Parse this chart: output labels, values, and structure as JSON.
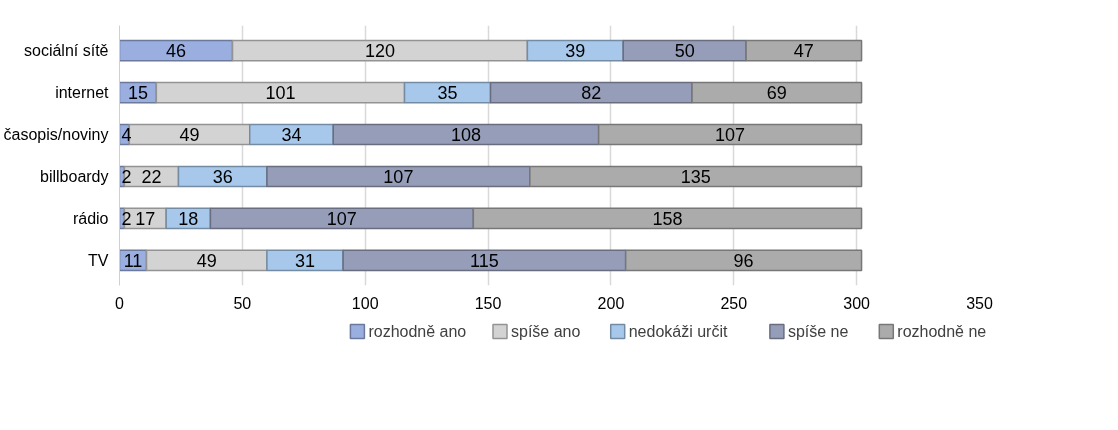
{
  "chart_data": {
    "type": "bar",
    "orientation": "horizontal",
    "stacked": true,
    "data_labels": true,
    "categories": [
      "sociální sítě",
      "internet",
      "časopis/noviny",
      "billboardy",
      "rádio",
      "TV"
    ],
    "series": [
      {
        "name": "rozhodně ano",
        "color": "#9aaee0",
        "values": [
          46,
          15,
          4,
          2,
          2,
          11
        ]
      },
      {
        "name": "spíše ano",
        "color": "#d3d3d3",
        "values": [
          120,
          101,
          49,
          22,
          17,
          49
        ]
      },
      {
        "name": "nedokáži určit",
        "color": "#a7c8ea",
        "values": [
          39,
          35,
          34,
          36,
          18,
          31
        ]
      },
      {
        "name": "spíše ne",
        "color": "#959db8",
        "values": [
          50,
          82,
          108,
          107,
          107,
          115
        ]
      },
      {
        "name": "rozhodně ne",
        "color": "#ababab",
        "values": [
          47,
          69,
          107,
          135,
          158,
          96
        ]
      }
    ],
    "xlim": [
      0,
      350
    ],
    "xticks": [
      0,
      50,
      100,
      150,
      200,
      250,
      300,
      350
    ],
    "grid": "x",
    "legend": "bottom"
  }
}
